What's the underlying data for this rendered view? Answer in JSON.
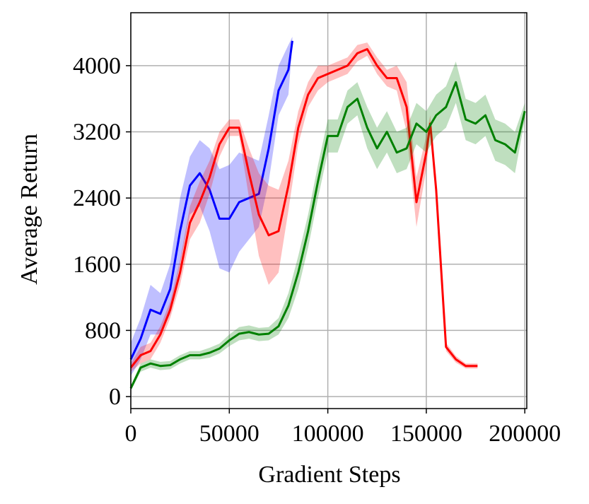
{
  "chart_data": {
    "type": "line",
    "xlabel": "Gradient Steps",
    "ylabel": "Average Return",
    "xlim": [
      0,
      201000
    ],
    "ylim": [
      -145,
      4640
    ],
    "xticks": [
      0,
      50000,
      100000,
      150000,
      200000
    ],
    "yticks": [
      0,
      800,
      1600,
      2400,
      3200,
      4000
    ],
    "grid": true,
    "band_opacity": 0.25,
    "series": [
      {
        "color": "#0000ff",
        "x": [
          0,
          5000,
          10000,
          15000,
          20000,
          25000,
          30000,
          35000,
          40000,
          45000,
          50000,
          55000,
          60000,
          65000,
          70000,
          75000,
          80000,
          82000
        ],
        "values": [
          450,
          700,
          1050,
          1000,
          1300,
          2000,
          2550,
          2700,
          2500,
          2150,
          2150,
          2350,
          2400,
          2450,
          3000,
          3700,
          3950,
          4300
        ],
        "errors": [
          200,
          250,
          300,
          250,
          300,
          400,
          350,
          400,
          500,
          600,
          650,
          600,
          500,
          400,
          400,
          300,
          300,
          50
        ]
      },
      {
        "color": "#ff0000",
        "x": [
          0,
          5000,
          10000,
          15000,
          20000,
          25000,
          30000,
          35000,
          40000,
          45000,
          50000,
          55000,
          60000,
          65000,
          70000,
          75000,
          80000,
          85000,
          90000,
          95000,
          100000,
          105000,
          110000,
          115000,
          120000,
          125000,
          130000,
          135000,
          140000,
          145000,
          150000,
          152000,
          155000,
          160000,
          165000,
          170000,
          176000
        ],
        "values": [
          350,
          500,
          550,
          750,
          1050,
          1500,
          2100,
          2350,
          2650,
          3050,
          3250,
          3250,
          2700,
          2200,
          1950,
          2000,
          2550,
          3250,
          3650,
          3850,
          3900,
          3950,
          4000,
          4150,
          4200,
          4000,
          3850,
          3850,
          3500,
          2350,
          2950,
          3300,
          2500,
          600,
          450,
          370,
          370
        ],
        "errors": [
          50,
          100,
          100,
          100,
          100,
          150,
          200,
          250,
          200,
          150,
          100,
          100,
          300,
          500,
          600,
          500,
          300,
          200,
          150,
          150,
          100,
          100,
          100,
          100,
          80,
          100,
          100,
          150,
          300,
          300,
          200,
          100,
          100,
          50,
          40,
          30,
          30
        ]
      },
      {
        "color": "#008000",
        "x": [
          0,
          5000,
          10000,
          15000,
          20000,
          25000,
          30000,
          35000,
          40000,
          45000,
          50000,
          55000,
          60000,
          65000,
          70000,
          75000,
          80000,
          85000,
          90000,
          95000,
          100000,
          105000,
          110000,
          115000,
          120000,
          125000,
          130000,
          135000,
          140000,
          145000,
          150000,
          155000,
          160000,
          165000,
          170000,
          175000,
          180000,
          185000,
          190000,
          195000,
          200000
        ],
        "values": [
          100,
          350,
          400,
          370,
          380,
          450,
          500,
          500,
          530,
          580,
          680,
          760,
          780,
          750,
          760,
          850,
          1100,
          1500,
          2000,
          2600,
          3150,
          3150,
          3500,
          3600,
          3250,
          3000,
          3200,
          2950,
          3000,
          3300,
          3200,
          3400,
          3500,
          3800,
          3350,
          3300,
          3400,
          3100,
          3050,
          2950,
          3450
        ],
        "errors": [
          30,
          50,
          50,
          50,
          50,
          50,
          50,
          50,
          60,
          60,
          70,
          80,
          80,
          80,
          80,
          100,
          150,
          200,
          200,
          200,
          200,
          200,
          200,
          200,
          250,
          250,
          250,
          250,
          250,
          250,
          250,
          250,
          250,
          250,
          250,
          250,
          250,
          250,
          250,
          250,
          100
        ]
      }
    ]
  }
}
